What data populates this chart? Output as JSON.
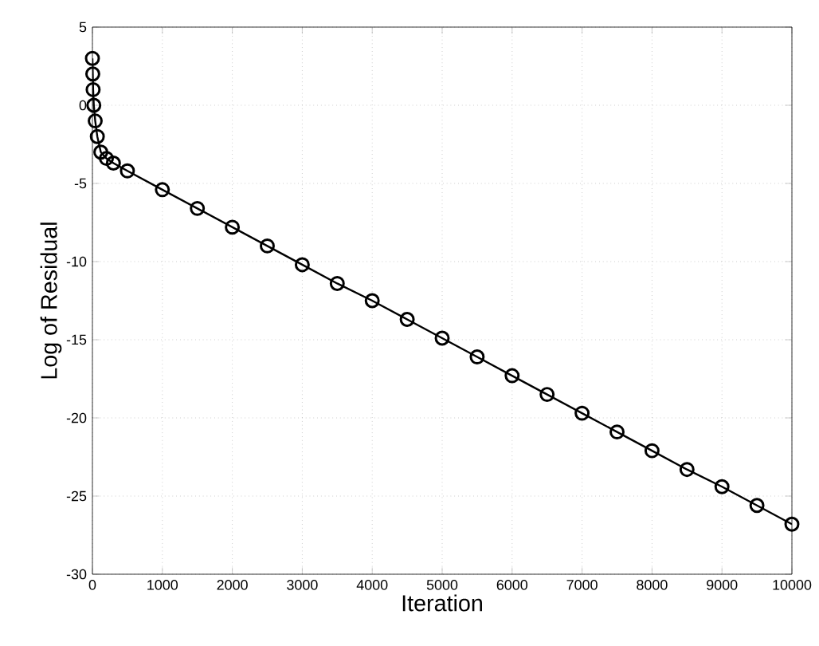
{
  "chart_data": {
    "type": "line",
    "xlabel": "Iteration",
    "ylabel": "Log of Residual",
    "xlim": [
      0,
      10000
    ],
    "ylim": [
      -30,
      5
    ],
    "xticks": [
      0,
      1000,
      2000,
      3000,
      4000,
      5000,
      6000,
      7000,
      8000,
      9000,
      10000
    ],
    "yticks": [
      -30,
      -25,
      -20,
      -15,
      -10,
      -5,
      0,
      5
    ],
    "grid": true,
    "marker": "circle",
    "line_style": "solid",
    "series": [
      {
        "color": "#000000",
        "x": [
          0,
          5,
          10,
          20,
          40,
          70,
          120,
          200,
          300,
          500,
          1000,
          1500,
          2000,
          2500,
          3000,
          3500,
          4000,
          4500,
          5000,
          5500,
          6000,
          6500,
          7000,
          7500,
          8000,
          8500,
          9000,
          9500,
          10000
        ],
        "values": [
          3,
          2,
          1,
          0,
          -1,
          -2,
          -3,
          -3.4,
          -3.7,
          -4.2,
          -5.4,
          -6.6,
          -7.8,
          -9.0,
          -10.2,
          -11.4,
          -12.5,
          -13.7,
          -14.9,
          -16.1,
          -17.3,
          -18.5,
          -19.7,
          -20.9,
          -22.1,
          -23.3,
          -24.4,
          -25.6,
          -26.8
        ]
      }
    ]
  }
}
